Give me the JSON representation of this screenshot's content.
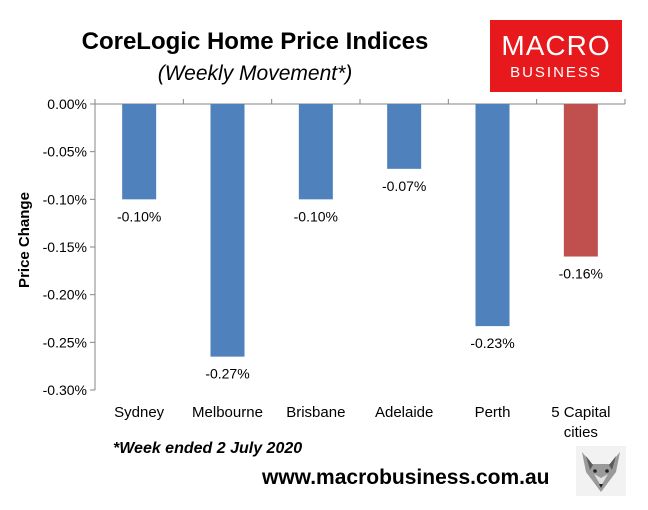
{
  "header": {
    "title": "CoreLogic Home Price Indices",
    "subtitle": "(Weekly Movement*)"
  },
  "logo": {
    "line1": "MACRO",
    "line2": "BUSINESS",
    "color": "#e8191c"
  },
  "footer": {
    "note": "*Week ended 2 July 2020",
    "url": "www.macrobusiness.com.au"
  },
  "colors": {
    "bar": "#4f81bd",
    "highlight_bar": "#c0504d"
  },
  "chart_data": {
    "type": "bar",
    "title": "CoreLogic Home Price Indices",
    "subtitle": "(Weekly Movement*)",
    "ylabel": "Price Change",
    "xlabel": "",
    "ylim": [
      -0.3,
      0.0
    ],
    "yticks": [
      0.0,
      -0.05,
      -0.1,
      -0.15,
      -0.2,
      -0.25,
      -0.3
    ],
    "ytick_labels": [
      "0.00%",
      "-0.05%",
      "-0.10%",
      "-0.15%",
      "-0.20%",
      "-0.25%",
      "-0.30%"
    ],
    "categories": [
      "Sydney",
      "Melbourne",
      "Brisbane",
      "Adelaide",
      "Perth",
      "5 Capital cities"
    ],
    "category_lines": [
      [
        "Sydney"
      ],
      [
        "Melbourne"
      ],
      [
        "Brisbane"
      ],
      [
        "Adelaide"
      ],
      [
        "Perth"
      ],
      [
        "5 Capital",
        "cities"
      ]
    ],
    "values": [
      -0.1,
      -0.265,
      -0.1,
      -0.068,
      -0.233,
      -0.16
    ],
    "data_labels": [
      "-0.10%",
      "-0.27%",
      "-0.10%",
      "-0.07%",
      "-0.23%",
      "-0.16%"
    ],
    "highlight_index": 5,
    "grid": false,
    "legend": "none"
  }
}
